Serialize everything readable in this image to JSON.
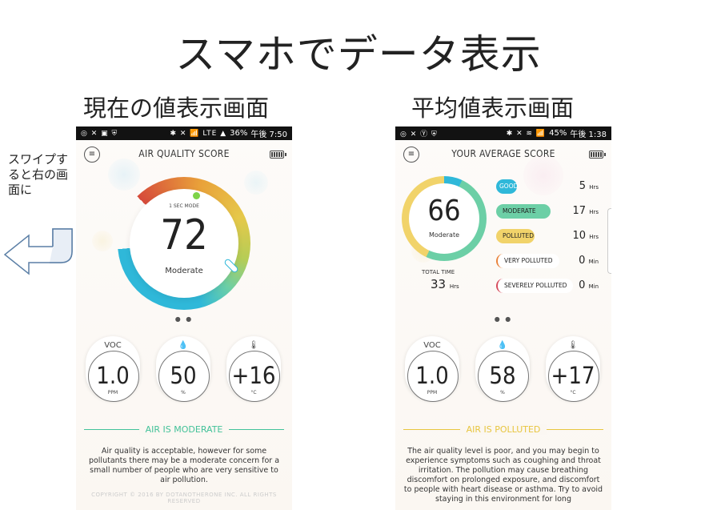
{
  "slide": {
    "title": "スマホでデータ表示",
    "left_subtitle": "現在の値表示画面",
    "right_subtitle": "平均値表示画面",
    "swipe_note": "スワイプすると右の画面に"
  },
  "left_screen": {
    "status_bar": {
      "icons": "◎ ✕ ▣ ⛨",
      "right_icons": "✱ ✕ 📶 LTE ▲",
      "battery_pct": "36%",
      "time": "午後 7:50"
    },
    "app_title": "AIR QUALITY SCORE",
    "gauge": {
      "mode": "1 SEC MODE",
      "value": "72",
      "label": "Moderate"
    },
    "pager": "● ●",
    "sensors": [
      {
        "icon": "VOC",
        "value": "1.0",
        "unit": "PPM"
      },
      {
        "icon": "💧",
        "value": "50",
        "unit": "%"
      },
      {
        "icon": "🌡",
        "value": "+16",
        "unit": "°C"
      }
    ],
    "status": "AIR IS MODERATE",
    "status_color": "#43c29a",
    "description": "Air quality is acceptable, however for some pollutants there may be a moderate concern for a small number of people who are very sensitive to air pollution.",
    "copyright": "COPYRIGHT © 2016 BY DOTANOTHERONE INC. ALL RIGHTS RESERVED"
  },
  "right_screen": {
    "status_bar": {
      "icons": "◎ ✕ Ⓨ ⛨",
      "right_icons": "✱ ✕ ≋ 📶",
      "battery_pct": "45%",
      "time": "午後 1:38"
    },
    "app_title": "YOUR AVERAGE SCORE",
    "average": {
      "value": "66",
      "label": "Moderate"
    },
    "total_time": {
      "label": "TOTAL TIME",
      "value": "33",
      "unit": "Hrs"
    },
    "categories": [
      {
        "name": "GOOD",
        "value": "5",
        "unit": "Hrs",
        "color": "#2fb8d9",
        "style": "fill"
      },
      {
        "name": "MODERATE",
        "value": "17",
        "unit": "Hrs",
        "color": "#6ccfa6",
        "style": "fill"
      },
      {
        "name": "POLLUTED",
        "value": "10",
        "unit": "Hrs",
        "color": "#f1d36a",
        "style": "fill"
      },
      {
        "name": "VERY POLLUTED",
        "value": "0",
        "unit": "Min",
        "color": "#e9823a",
        "style": "outline"
      },
      {
        "name": "SEVERELY POLLUTED",
        "value": "0",
        "unit": "Min",
        "color": "#d64a5b",
        "style": "outline"
      }
    ],
    "pager": "● ●",
    "sensors": [
      {
        "icon": "VOC",
        "value": "1.0",
        "unit": "PPM"
      },
      {
        "icon": "💧",
        "value": "58",
        "unit": "%"
      },
      {
        "icon": "🌡",
        "value": "+17",
        "unit": "°C"
      }
    ],
    "status": "AIR IS POLLUTED",
    "status_color": "#e8c640",
    "description": "The air quality level is poor, and you may begin to experience symptoms such as coughing and throat irritation. The pollution may cause breathing discomfort on prolonged exposure, and discomfort to people with heart disease or asthma. Try to avoid staying in this environment for long"
  }
}
